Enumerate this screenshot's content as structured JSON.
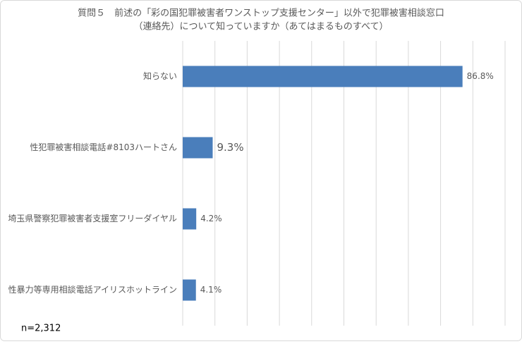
{
  "chart_data": {
    "type": "bar",
    "orientation": "horizontal",
    "title": [
      "質問５　前述の「彩の国犯罪被害者ワンストップ支援センター」以外で犯罪被害相談窓口",
      "（連絡先）について知っていますか（あてはまるものすべて）"
    ],
    "categories": [
      "知らない",
      "性犯罪被害相談電話#8103ハートさん",
      "埼玉県警察犯罪被害者支援室フリーダイヤル",
      "性暴力等専用相談電話アイリスホットライン"
    ],
    "values": [
      86.8,
      9.3,
      4.2,
      4.1
    ],
    "value_labels": [
      "86.8%",
      "9.3%",
      "4.2%",
      "4.1%"
    ],
    "color": "#4a7ebb",
    "xlim": [
      0,
      100
    ],
    "xticks": [
      0,
      10,
      20,
      30,
      40,
      50,
      60,
      70,
      80,
      90,
      100
    ],
    "grid": true,
    "annotation": "n=2,312"
  }
}
